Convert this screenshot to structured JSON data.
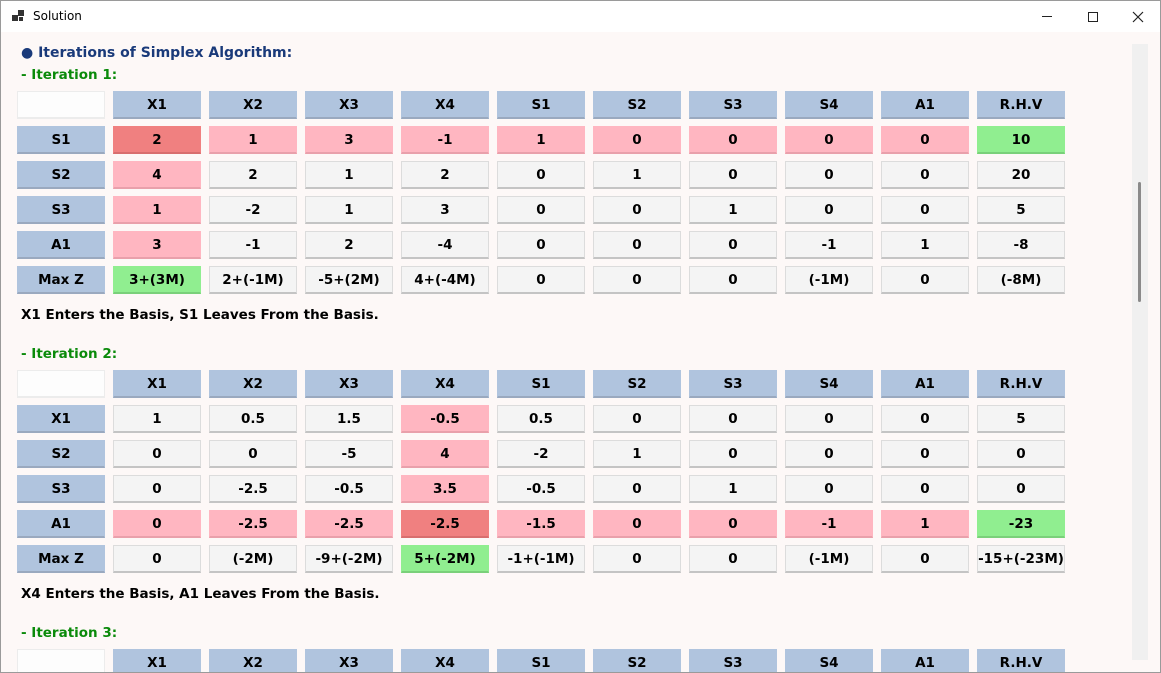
{
  "window": {
    "title": "Solution"
  },
  "heading": "● Iterations of Simplex Algorithm:",
  "iterations": [
    {
      "title": "- Iteration 1:",
      "columns": [
        "X1",
        "X2",
        "X3",
        "X4",
        "S1",
        "S2",
        "S3",
        "S4",
        "A1",
        "R.H.V"
      ],
      "rows": [
        {
          "label": "S1",
          "cells": [
            "2",
            "1",
            "3",
            "-1",
            "1",
            "0",
            "0",
            "0",
            "0",
            "10"
          ],
          "colors": [
            "red",
            "pink",
            "pink",
            "pink",
            "pink",
            "pink",
            "pink",
            "pink",
            "pink",
            "green"
          ]
        },
        {
          "label": "S2",
          "cells": [
            "4",
            "2",
            "1",
            "2",
            "0",
            "1",
            "0",
            "0",
            "0",
            "20"
          ],
          "colors": [
            "pink",
            "",
            "",
            "",
            "",
            "",
            "",
            "",
            "",
            ""
          ]
        },
        {
          "label": "S3",
          "cells": [
            "1",
            "-2",
            "1",
            "3",
            "0",
            "0",
            "1",
            "0",
            "0",
            "5"
          ],
          "colors": [
            "pink",
            "",
            "",
            "",
            "",
            "",
            "",
            "",
            "",
            ""
          ]
        },
        {
          "label": "A1",
          "cells": [
            "3",
            "-1",
            "2",
            "-4",
            "0",
            "0",
            "0",
            "-1",
            "1",
            "-8"
          ],
          "colors": [
            "pink",
            "",
            "",
            "",
            "",
            "",
            "",
            "",
            "",
            ""
          ]
        },
        {
          "label": "Max Z",
          "cells": [
            "3+(3M)",
            "2+(-1M)",
            "-5+(2M)",
            "4+(-4M)",
            "0",
            "0",
            "0",
            "(-1M)",
            "0",
            "(-8M)"
          ],
          "colors": [
            "green",
            "",
            "",
            "",
            "",
            "",
            "",
            "",
            "",
            ""
          ]
        }
      ],
      "note": "X1 Enters the Basis, S1 Leaves From the Basis."
    },
    {
      "title": "- Iteration 2:",
      "columns": [
        "X1",
        "X2",
        "X3",
        "X4",
        "S1",
        "S2",
        "S3",
        "S4",
        "A1",
        "R.H.V"
      ],
      "rows": [
        {
          "label": "X1",
          "cells": [
            "1",
            "0.5",
            "1.5",
            "-0.5",
            "0.5",
            "0",
            "0",
            "0",
            "0",
            "5"
          ],
          "colors": [
            "",
            "",
            "",
            "pink",
            "",
            "",
            "",
            "",
            "",
            ""
          ]
        },
        {
          "label": "S2",
          "cells": [
            "0",
            "0",
            "-5",
            "4",
            "-2",
            "1",
            "0",
            "0",
            "0",
            "0"
          ],
          "colors": [
            "",
            "",
            "",
            "pink",
            "",
            "",
            "",
            "",
            "",
            ""
          ]
        },
        {
          "label": "S3",
          "cells": [
            "0",
            "-2.5",
            "-0.5",
            "3.5",
            "-0.5",
            "0",
            "1",
            "0",
            "0",
            "0"
          ],
          "colors": [
            "",
            "",
            "",
            "pink",
            "",
            "",
            "",
            "",
            "",
            ""
          ]
        },
        {
          "label": "A1",
          "cells": [
            "0",
            "-2.5",
            "-2.5",
            "-2.5",
            "-1.5",
            "0",
            "0",
            "-1",
            "1",
            "-23"
          ],
          "colors": [
            "pink",
            "pink",
            "pink",
            "red",
            "pink",
            "pink",
            "pink",
            "pink",
            "pink",
            "green"
          ]
        },
        {
          "label": "Max Z",
          "cells": [
            "0",
            "(-2M)",
            "-9+(-2M)",
            "5+(-2M)",
            "-1+(-1M)",
            "0",
            "0",
            "(-1M)",
            "0",
            "-15+(-23M)"
          ],
          "colors": [
            "",
            "",
            "",
            "green",
            "",
            "",
            "",
            "",
            "",
            ""
          ]
        }
      ],
      "note": "X4 Enters the Basis, A1 Leaves From the Basis."
    },
    {
      "title": "- Iteration 3:",
      "columns": [
        "X1",
        "X2",
        "X3",
        "X4",
        "S1",
        "S2",
        "S3",
        "S4",
        "A1",
        "R.H.V"
      ],
      "rows": [],
      "note": ""
    }
  ],
  "colors": {
    "header": "#b0c4de",
    "pink": "#ffb6c1",
    "red": "#f08080",
    "green": "#90ee90",
    "heading": "#1a3a7a",
    "iteration": "#0a8a0a"
  }
}
